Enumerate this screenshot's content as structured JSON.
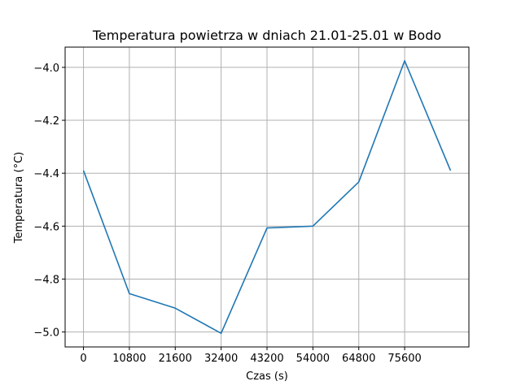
{
  "chart_data": {
    "type": "line",
    "title": "Temperatura powietrza w dniach 21.01-25.01 w Bodo",
    "xlabel": "Czas (s)",
    "ylabel": "Temperatura (°C)",
    "x": [
      0,
      10800,
      21600,
      32400,
      43200,
      54000,
      64800,
      75600,
      86400
    ],
    "series": [
      {
        "values": [
          -4.39,
          -4.855,
          -4.91,
          -5.005,
          -4.607,
          -4.6,
          -4.433,
          -3.975,
          -4.39
        ],
        "color": "#1f77b4"
      }
    ],
    "xticks": [
      0,
      10800,
      21600,
      32400,
      43200,
      54000,
      64800,
      75600
    ],
    "xtick_labels": [
      "0",
      "10800",
      "21600",
      "32400",
      "43200",
      "54000",
      "64800",
      "75600"
    ],
    "yticks": [
      -5.0,
      -4.8,
      -4.6,
      -4.4,
      -4.2,
      -4.0
    ],
    "ytick_labels": [
      "−5.0",
      "−4.8",
      "−4.6",
      "−4.4",
      "−4.2",
      "−4.0"
    ],
    "xlim": [
      -4320,
      90720
    ],
    "ylim": [
      -5.0565,
      -3.9235
    ],
    "grid": true
  }
}
